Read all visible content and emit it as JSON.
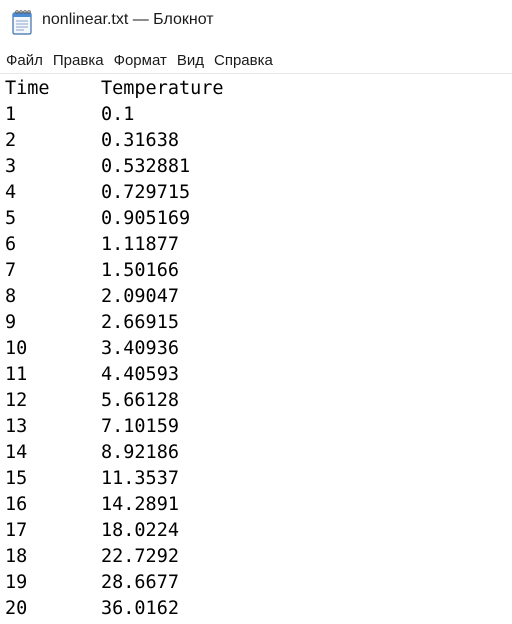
{
  "window": {
    "title": "nonlinear.txt — Блокнот"
  },
  "menu": {
    "items": [
      "Файл",
      "Правка",
      "Формат",
      "Вид",
      "Справка"
    ]
  },
  "document": {
    "header": [
      "Time",
      "Temperature"
    ],
    "rows": [
      [
        "1",
        "0.1"
      ],
      [
        "2",
        "0.31638"
      ],
      [
        "3",
        "0.532881"
      ],
      [
        "4",
        "0.729715"
      ],
      [
        "5",
        "0.905169"
      ],
      [
        "6",
        "1.11877"
      ],
      [
        "7",
        "1.50166"
      ],
      [
        "8",
        "2.09047"
      ],
      [
        "9",
        "2.66915"
      ],
      [
        "10",
        "3.40936"
      ],
      [
        "11",
        "4.40593"
      ],
      [
        "12",
        "5.66128"
      ],
      [
        "13",
        "7.10159"
      ],
      [
        "14",
        "8.92186"
      ],
      [
        "15",
        "11.3537"
      ],
      [
        "16",
        "14.2891"
      ],
      [
        "17",
        "18.0224"
      ],
      [
        "18",
        "22.7292"
      ],
      [
        "19",
        "28.6677"
      ],
      [
        "20",
        "36.0162"
      ]
    ]
  },
  "icons": {
    "app": "notepad-icon"
  }
}
